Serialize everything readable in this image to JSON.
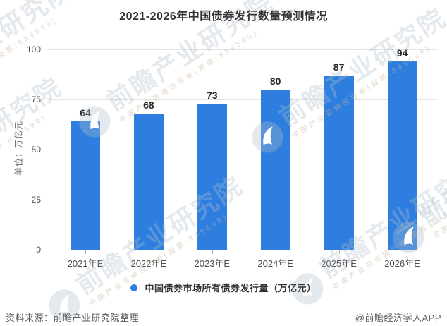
{
  "title": "2021-2026年中国债券发行数量预测情况",
  "chart_data": {
    "type": "bar",
    "categories": [
      "2021年E",
      "2022年E",
      "2023年E",
      "2024年E",
      "2025年E",
      "2026年E"
    ],
    "values": [
      64,
      68,
      73,
      80,
      87,
      94
    ],
    "series_name": "中国债券市场所有债券发行量（万亿元）",
    "title": "2021-2026年中国债券发行数量预测情况",
    "xlabel": "",
    "ylabel": "单位：万亿元",
    "ylim": [
      0,
      100
    ],
    "yticks": [
      0,
      25,
      50,
      75,
      100
    ],
    "grid": true,
    "legend_position": "bottom",
    "value_labels_shown": true,
    "bar_color": "#2d7ede"
  },
  "y_axis": {
    "unit_label": "单位：万亿元"
  },
  "legend": {
    "marker": "circle",
    "label": "中国债券市场所有债券发行量（万亿元）"
  },
  "footer": {
    "source": "资料来源：前瞻产业研究院整理",
    "credit": "@前瞻经济学人APP"
  },
  "watermark": {
    "logo": "qianzhan-bird-logo",
    "text": "前瞻产业研究院",
    "subtext": "中国产业咨询领导者(股票:839599)"
  },
  "colors": {
    "bar": "#2d7ede",
    "grid": "#e3e3e3",
    "axis_text": "#4d4d4d",
    "title": "#333333",
    "value_label": "#262626",
    "legend_text": "#333333",
    "footer_text": "#595959",
    "watermark": "#b9c6d4"
  }
}
